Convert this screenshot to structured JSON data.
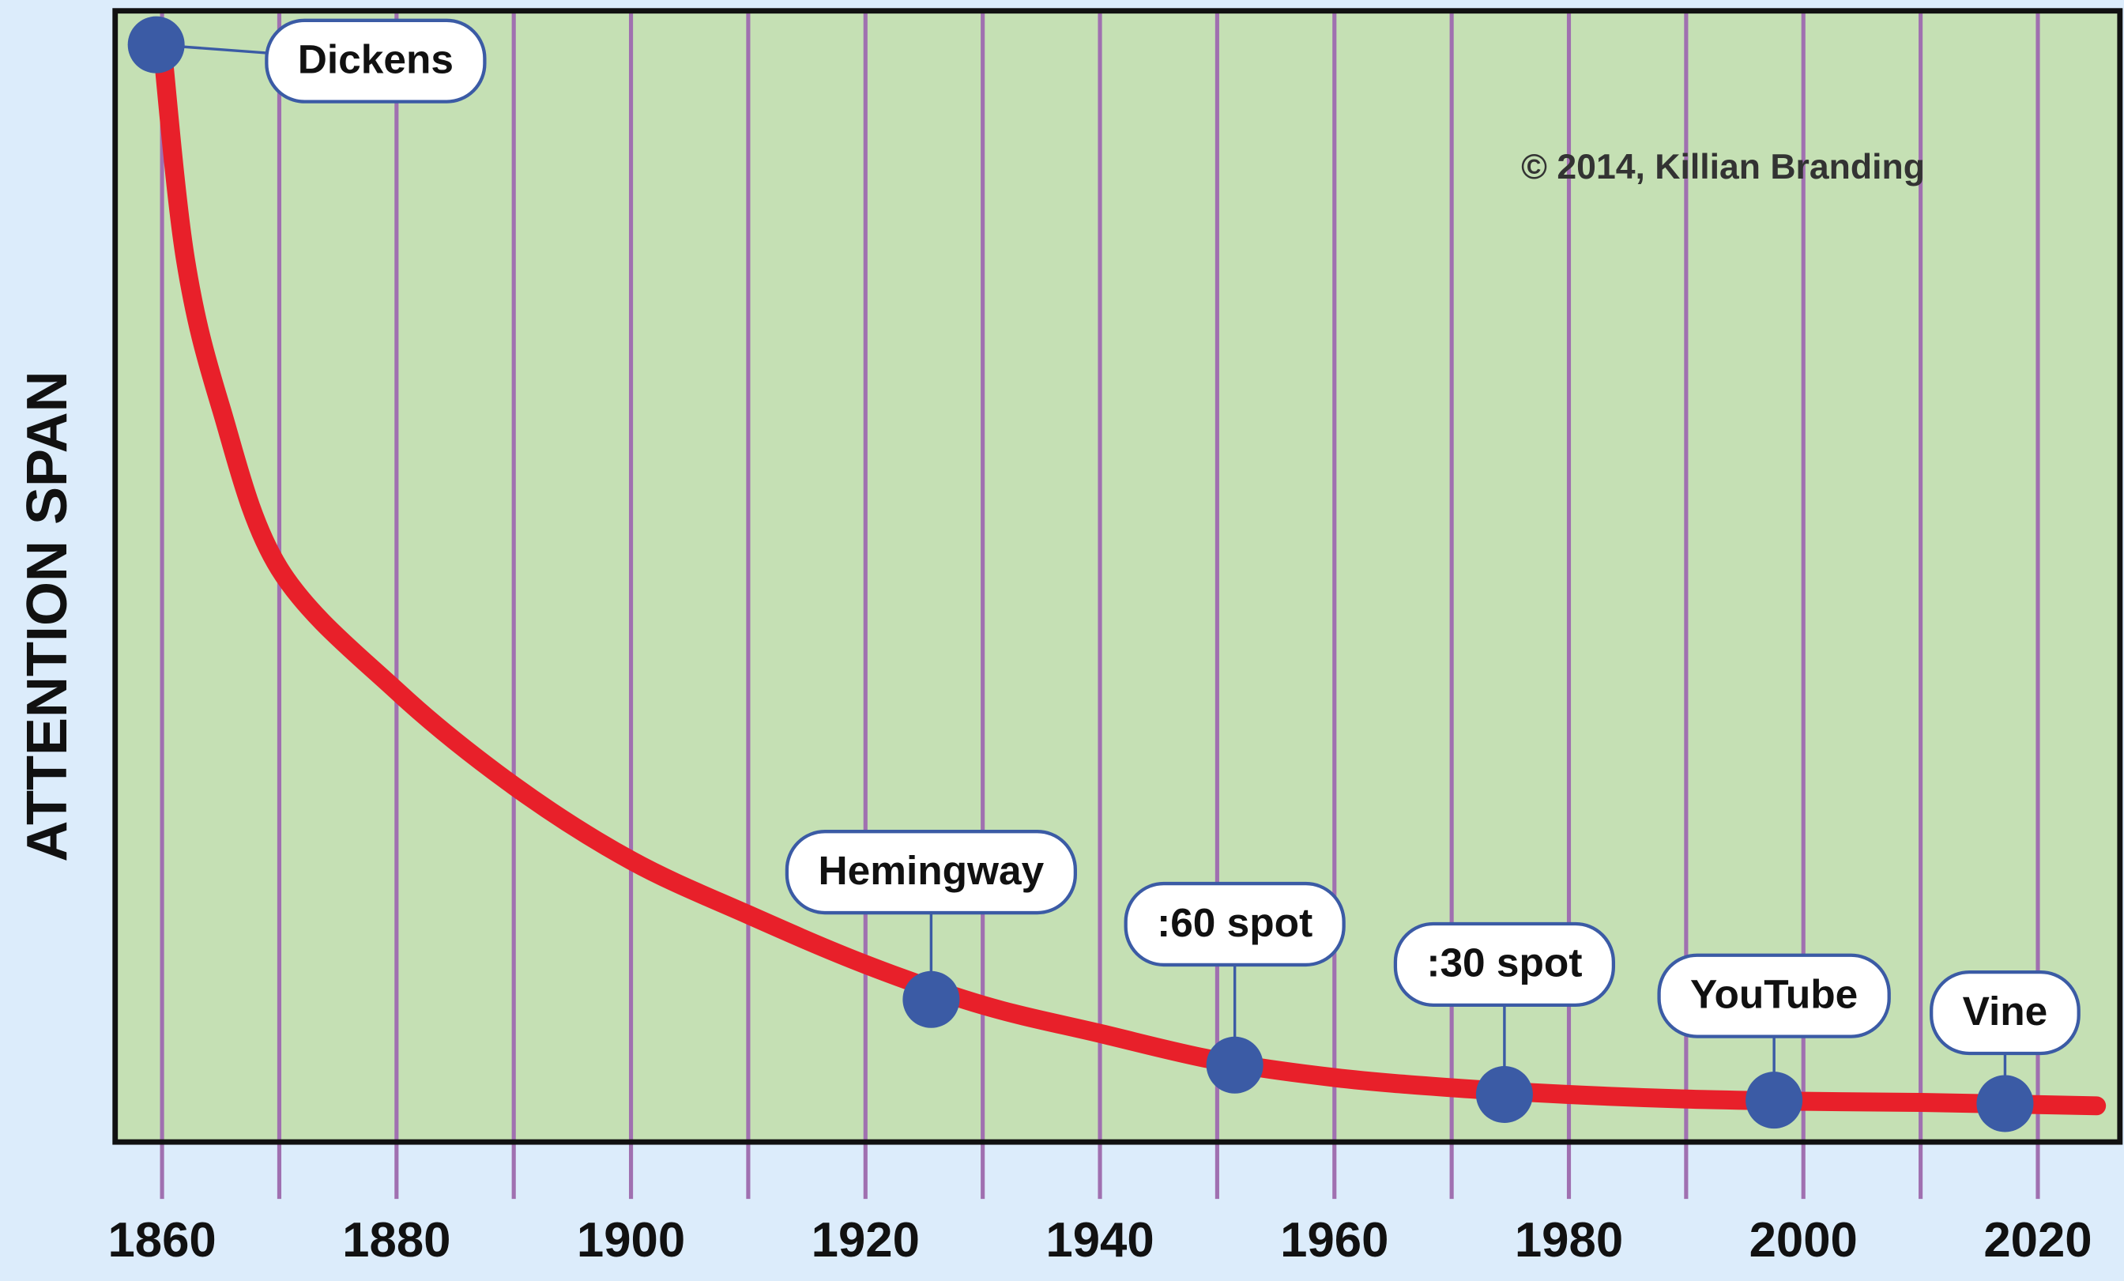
{
  "chart_data": {
    "type": "line",
    "ylabel": "ATTENTION SPAN",
    "annotation": "© 2014, Killian Branding",
    "xlim": [
      1856,
      2027
    ],
    "ylim": [
      0,
      100
    ],
    "xticks": [
      1860,
      1880,
      1900,
      1920,
      1940,
      1960,
      1980,
      2000,
      2020
    ],
    "minor_xticks": [
      1870,
      1890,
      1910,
      1930,
      1950,
      1970,
      1990,
      2010
    ],
    "grid": true,
    "curve": {
      "color": "#e8202a",
      "x": [
        1860,
        1862,
        1865,
        1870,
        1880,
        1890,
        1900,
        1910,
        1920,
        1930,
        1940,
        1950,
        1960,
        1970,
        1980,
        1990,
        2000,
        2010,
        2025
      ],
      "values": [
        97,
        78,
        65,
        50.7,
        39.9,
        31.5,
        24.9,
        20.1,
        15.7,
        12.1,
        9.6,
        7.2,
        5.7,
        4.8,
        4.2,
        3.8,
        3.6,
        3.5,
        3.2
      ]
    },
    "milestones": {
      "color": "#3b5ba5",
      "labels": [
        "Dickens",
        "Hemingway",
        ":60 spot",
        ":30 spot",
        "YouTube",
        "Vine"
      ],
      "x": [
        1859.5,
        1925.6,
        1951.5,
        1974.5,
        1997.5,
        2017.2
      ],
      "values": [
        97,
        12.6,
        6.8,
        4.2,
        3.7,
        3.4
      ]
    }
  }
}
